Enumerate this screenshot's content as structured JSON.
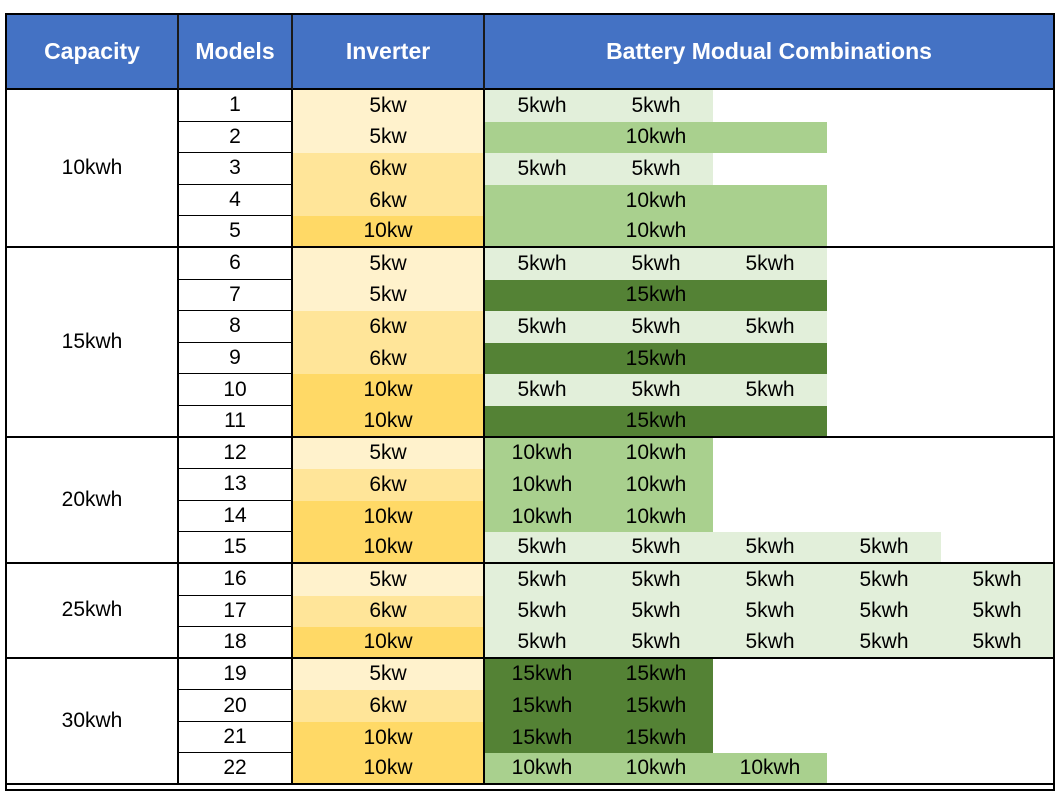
{
  "headers": {
    "capacity": "Capacity",
    "models": "Models",
    "inverter": "Inverter",
    "combinations": "Battery Modual Combinations"
  },
  "groups": [
    {
      "capacity": "10kwh",
      "rows": [
        {
          "model": "1",
          "inverter": "5kw",
          "combo": [
            {
              "text": "5kwh",
              "span": 1,
              "shade": "light"
            },
            {
              "text": "5kwh",
              "span": 1,
              "shade": "light"
            }
          ]
        },
        {
          "model": "2",
          "inverter": "5kw",
          "combo": [
            {
              "text": "10kwh",
              "span": 3,
              "shade": "medium"
            }
          ]
        },
        {
          "model": "3",
          "inverter": "6kw",
          "combo": [
            {
              "text": "5kwh",
              "span": 1,
              "shade": "light"
            },
            {
              "text": "5kwh",
              "span": 1,
              "shade": "light"
            }
          ]
        },
        {
          "model": "4",
          "inverter": "6kw",
          "combo": [
            {
              "text": "10kwh",
              "span": 3,
              "shade": "medium"
            }
          ]
        },
        {
          "model": "5",
          "inverter": "10kw",
          "combo": [
            {
              "text": "10kwh",
              "span": 3,
              "shade": "medium"
            }
          ]
        }
      ]
    },
    {
      "capacity": "15kwh",
      "rows": [
        {
          "model": "6",
          "inverter": "5kw",
          "combo": [
            {
              "text": "5kwh",
              "span": 1,
              "shade": "light"
            },
            {
              "text": "5kwh",
              "span": 1,
              "shade": "light"
            },
            {
              "text": "5kwh",
              "span": 1,
              "shade": "light"
            }
          ]
        },
        {
          "model": "7",
          "inverter": "5kw",
          "combo": [
            {
              "text": "15kwh",
              "span": 3,
              "shade": "dark"
            }
          ]
        },
        {
          "model": "8",
          "inverter": "6kw",
          "combo": [
            {
              "text": "5kwh",
              "span": 1,
              "shade": "light"
            },
            {
              "text": "5kwh",
              "span": 1,
              "shade": "light"
            },
            {
              "text": "5kwh",
              "span": 1,
              "shade": "light"
            }
          ]
        },
        {
          "model": "9",
          "inverter": "6kw",
          "combo": [
            {
              "text": "15kwh",
              "span": 3,
              "shade": "dark"
            }
          ]
        },
        {
          "model": "10",
          "inverter": "10kw",
          "combo": [
            {
              "text": "5kwh",
              "span": 1,
              "shade": "light"
            },
            {
              "text": "5kwh",
              "span": 1,
              "shade": "light"
            },
            {
              "text": "5kwh",
              "span": 1,
              "shade": "light"
            }
          ]
        },
        {
          "model": "11",
          "inverter": "10kw",
          "combo": [
            {
              "text": "15kwh",
              "span": 3,
              "shade": "dark"
            }
          ]
        }
      ]
    },
    {
      "capacity": "20kwh",
      "rows": [
        {
          "model": "12",
          "inverter": "5kw",
          "combo": [
            {
              "text": "10kwh",
              "span": 1,
              "shade": "medium"
            },
            {
              "text": "10kwh",
              "span": 1,
              "shade": "medium"
            }
          ]
        },
        {
          "model": "13",
          "inverter": "6kw",
          "combo": [
            {
              "text": "10kwh",
              "span": 1,
              "shade": "medium"
            },
            {
              "text": "10kwh",
              "span": 1,
              "shade": "medium"
            }
          ]
        },
        {
          "model": "14",
          "inverter": "10kw",
          "combo": [
            {
              "text": "10kwh",
              "span": 1,
              "shade": "medium"
            },
            {
              "text": "10kwh",
              "span": 1,
              "shade": "medium"
            }
          ]
        },
        {
          "model": "15",
          "inverter": "10kw",
          "combo": [
            {
              "text": "5kwh",
              "span": 1,
              "shade": "light"
            },
            {
              "text": "5kwh",
              "span": 1,
              "shade": "light"
            },
            {
              "text": "5kwh",
              "span": 1,
              "shade": "light"
            },
            {
              "text": "5kwh",
              "span": 1,
              "shade": "light"
            }
          ]
        }
      ]
    },
    {
      "capacity": "25kwh",
      "rows": [
        {
          "model": "16",
          "inverter": "5kw",
          "combo": [
            {
              "text": "5kwh",
              "span": 1,
              "shade": "light"
            },
            {
              "text": "5kwh",
              "span": 1,
              "shade": "light"
            },
            {
              "text": "5kwh",
              "span": 1,
              "shade": "light"
            },
            {
              "text": "5kwh",
              "span": 1,
              "shade": "light"
            },
            {
              "text": "5kwh",
              "span": 1,
              "shade": "light"
            }
          ]
        },
        {
          "model": "17",
          "inverter": "6kw",
          "combo": [
            {
              "text": "5kwh",
              "span": 1,
              "shade": "light"
            },
            {
              "text": "5kwh",
              "span": 1,
              "shade": "light"
            },
            {
              "text": "5kwh",
              "span": 1,
              "shade": "light"
            },
            {
              "text": "5kwh",
              "span": 1,
              "shade": "light"
            },
            {
              "text": "5kwh",
              "span": 1,
              "shade": "light"
            }
          ]
        },
        {
          "model": "18",
          "inverter": "10kw",
          "combo": [
            {
              "text": "5kwh",
              "span": 1,
              "shade": "light"
            },
            {
              "text": "5kwh",
              "span": 1,
              "shade": "light"
            },
            {
              "text": "5kwh",
              "span": 1,
              "shade": "light"
            },
            {
              "text": "5kwh",
              "span": 1,
              "shade": "light"
            },
            {
              "text": "5kwh",
              "span": 1,
              "shade": "light"
            }
          ]
        }
      ]
    },
    {
      "capacity": "30kwh",
      "rows": [
        {
          "model": "19",
          "inverter": "5kw",
          "combo": [
            {
              "text": "15kwh",
              "span": 1,
              "shade": "dark"
            },
            {
              "text": "15kwh",
              "span": 1,
              "shade": "dark"
            }
          ]
        },
        {
          "model": "20",
          "inverter": "6kw",
          "combo": [
            {
              "text": "15kwh",
              "span": 1,
              "shade": "dark"
            },
            {
              "text": "15kwh",
              "span": 1,
              "shade": "dark"
            }
          ]
        },
        {
          "model": "21",
          "inverter": "10kw",
          "combo": [
            {
              "text": "15kwh",
              "span": 1,
              "shade": "dark"
            },
            {
              "text": "15kwh",
              "span": 1,
              "shade": "dark"
            }
          ]
        },
        {
          "model": "22",
          "inverter": "10kw",
          "combo": [
            {
              "text": "10kwh",
              "span": 1,
              "shade": "medium"
            },
            {
              "text": "10kwh",
              "span": 1,
              "shade": "medium"
            },
            {
              "text": "10kwh",
              "span": 1,
              "shade": "medium"
            }
          ]
        }
      ]
    }
  ],
  "colors": {
    "header_bg": "#4472c4",
    "header_text": "#ffffff",
    "inverter_5kw": "#fff2cc",
    "inverter_6kw": "#ffe599",
    "inverter_10kw": "#ffd966",
    "battery_light": "#e2efda",
    "battery_medium": "#a9d08e",
    "battery_dark": "#548235"
  }
}
